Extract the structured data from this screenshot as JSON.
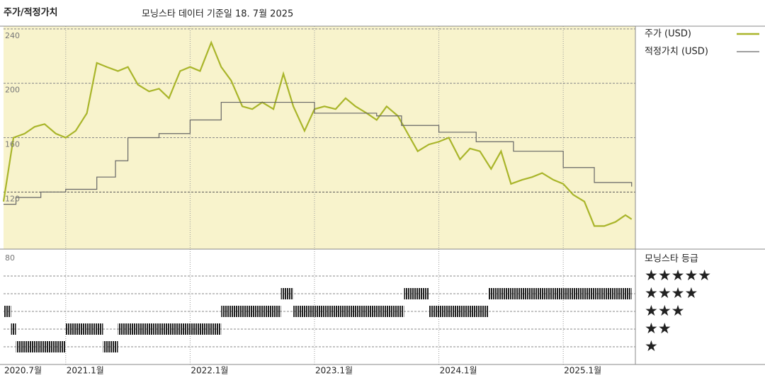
{
  "chart_data": {
    "type": "line",
    "title": "주가/적정가치",
    "subtitle": "모닝스타 데이터 기준일 18. 7월 2025",
    "x": [
      2020.5,
      2020.58,
      2020.67,
      2020.75,
      2020.83,
      2020.92,
      2021.0,
      2021.08,
      2021.17,
      2021.25,
      2021.33,
      2021.42,
      2021.5,
      2021.58,
      2021.67,
      2021.75,
      2021.83,
      2021.92,
      2022.0,
      2022.08,
      2022.17,
      2022.25,
      2022.33,
      2022.42,
      2022.5,
      2022.58,
      2022.67,
      2022.75,
      2022.83,
      2022.92,
      2023.0,
      2023.08,
      2023.17,
      2023.25,
      2023.33,
      2023.42,
      2023.5,
      2023.58,
      2023.67,
      2023.75,
      2023.83,
      2023.92,
      2024.0,
      2024.08,
      2024.17,
      2024.25,
      2024.33,
      2024.42,
      2024.5,
      2024.58,
      2024.67,
      2024.75,
      2024.83,
      2024.92,
      2025.0,
      2025.08,
      2025.17,
      2025.25,
      2025.33,
      2025.42,
      2025.5,
      2025.55
    ],
    "series": [
      {
        "name": "주가 (USD)",
        "color": "#a9b52a",
        "values": [
          113,
          160,
          163,
          168,
          170,
          163,
          160,
          165,
          178,
          215,
          212,
          209,
          212,
          199,
          194,
          196,
          189,
          209,
          212,
          209,
          230,
          212,
          202,
          183,
          181,
          186,
          181,
          207,
          183,
          165,
          181,
          183,
          181,
          189,
          183,
          178,
          173,
          183,
          176,
          163,
          150,
          155,
          157,
          160,
          144,
          152,
          150,
          137,
          150,
          126,
          129,
          131,
          134,
          129,
          126,
          118,
          113,
          95,
          95,
          98,
          103,
          100
        ]
      },
      {
        "name": "적정가치 (USD)",
        "color": "#666666",
        "step": true,
        "x": [
          2020.5,
          2020.6,
          2020.8,
          2021.0,
          2021.25,
          2021.4,
          2021.5,
          2021.75,
          2022.0,
          2022.25,
          2022.7,
          2023.0,
          2023.5,
          2023.7,
          2024.0,
          2024.3,
          2024.6,
          2025.0,
          2025.25,
          2025.55
        ],
        "values": [
          111,
          116,
          120,
          122,
          131,
          143,
          160,
          163,
          173,
          186,
          186,
          178,
          176,
          169,
          164,
          157,
          150,
          138,
          127,
          124
        ]
      }
    ],
    "xlim": [
      2020.5,
      2025.58
    ],
    "xticks": [
      {
        "value": 2020.5,
        "label": "2020.7월"
      },
      {
        "value": 2021,
        "label": "2021.1월"
      },
      {
        "value": 2022,
        "label": "2022.1월"
      },
      {
        "value": 2023,
        "label": "2023.1월"
      },
      {
        "value": 2024,
        "label": "2024.1월"
      },
      {
        "value": 2025,
        "label": "2025.1월"
      }
    ],
    "ylim": [
      78,
      242
    ],
    "yticks": [
      120,
      160,
      200,
      240
    ],
    "rating_title": "모닝스타 등급",
    "rating_axis_label": "80",
    "rating_levels": [
      {
        "value": 5,
        "label": "★★★★★"
      },
      {
        "value": 4,
        "label": "★★★★"
      },
      {
        "value": 3,
        "label": "★★★"
      },
      {
        "value": 2,
        "label": "★★"
      },
      {
        "value": 1,
        "label": "★"
      }
    ],
    "rating": {
      "x": [
        2020.5,
        2020.56,
        2020.6,
        2021.0,
        2021.3,
        2021.42,
        2022.25,
        2022.73,
        2022.83,
        2023.72,
        2023.92,
        2024.4
      ],
      "values": [
        3,
        2,
        1,
        2,
        1,
        2,
        3,
        4,
        3,
        4,
        3,
        4
      ],
      "end": 2025.55
    },
    "grid": true
  }
}
